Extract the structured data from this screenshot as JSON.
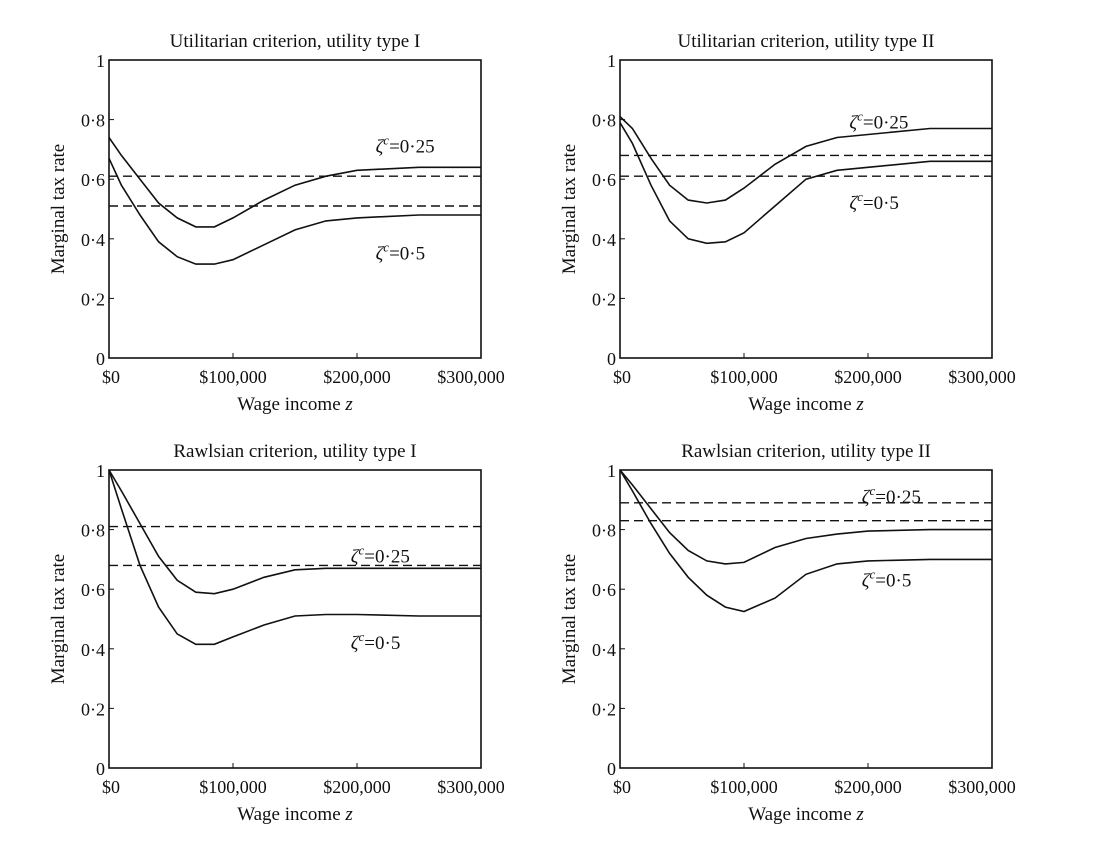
{
  "chart_data": [
    {
      "type": "line",
      "title": "Utilitarian criterion, utility type I",
      "xlabel": "Wage income z",
      "ylabel": "Marginal tax rate",
      "xlim": [
        0,
        300000
      ],
      "ylim": [
        0,
        1
      ],
      "xticks": [
        "$0",
        "$100,000",
        "$200,000",
        "$300,000"
      ],
      "yticks": [
        "0",
        "0·2",
        "0·4",
        "0·6",
        "0·8",
        "1"
      ],
      "series": [
        {
          "style": "solid",
          "x": [
            0,
            10000,
            25000,
            40000,
            55000,
            70000,
            85000,
            100000,
            125000,
            150000,
            175000,
            200000,
            250000,
            300000
          ],
          "y": [
            0.74,
            0.68,
            0.6,
            0.52,
            0.47,
            0.44,
            0.44,
            0.47,
            0.53,
            0.58,
            0.61,
            0.63,
            0.64,
            0.64
          ]
        },
        {
          "style": "solid",
          "x": [
            0,
            10000,
            25000,
            40000,
            55000,
            70000,
            85000,
            100000,
            125000,
            150000,
            175000,
            200000,
            250000,
            300000
          ],
          "y": [
            0.67,
            0.58,
            0.48,
            0.39,
            0.34,
            0.315,
            0.315,
            0.33,
            0.38,
            0.43,
            0.46,
            0.47,
            0.48,
            0.48
          ]
        },
        {
          "style": "dashed",
          "x": [
            0,
            300000
          ],
          "y": [
            0.61,
            0.61
          ]
        },
        {
          "style": "dashed",
          "x": [
            0,
            300000
          ],
          "y": [
            0.51,
            0.51
          ]
        }
      ],
      "annotations": [
        {
          "text": "ζ",
          "sup": "c",
          "value": "=0·25",
          "x": 215000,
          "y": 0.71
        },
        {
          "text": "ζ",
          "sup": "c",
          "value": "=0·5",
          "x": 215000,
          "y": 0.35
        }
      ]
    },
    {
      "type": "line",
      "title": "Utilitarian criterion, utility type II",
      "xlabel": "Wage income z",
      "ylabel": "Marginal tax rate",
      "xlim": [
        0,
        300000
      ],
      "ylim": [
        0,
        1
      ],
      "xticks": [
        "$0",
        "$100,000",
        "$200,000",
        "$300,000"
      ],
      "yticks": [
        "0",
        "0·2",
        "0·4",
        "0·6",
        "0·8",
        "1"
      ],
      "series": [
        {
          "style": "solid",
          "x": [
            0,
            10000,
            25000,
            40000,
            55000,
            70000,
            85000,
            100000,
            125000,
            150000,
            175000,
            200000,
            250000,
            300000
          ],
          "y": [
            0.81,
            0.77,
            0.67,
            0.58,
            0.53,
            0.52,
            0.53,
            0.57,
            0.65,
            0.71,
            0.74,
            0.75,
            0.77,
            0.77
          ]
        },
        {
          "style": "solid",
          "x": [
            0,
            10000,
            25000,
            40000,
            55000,
            70000,
            85000,
            100000,
            125000,
            150000,
            175000,
            200000,
            250000,
            300000
          ],
          "y": [
            0.79,
            0.72,
            0.58,
            0.46,
            0.4,
            0.385,
            0.39,
            0.42,
            0.51,
            0.6,
            0.63,
            0.64,
            0.66,
            0.66
          ]
        },
        {
          "style": "dashed",
          "x": [
            0,
            300000
          ],
          "y": [
            0.68,
            0.68
          ]
        },
        {
          "style": "dashed",
          "x": [
            0,
            300000
          ],
          "y": [
            0.61,
            0.61
          ]
        }
      ],
      "annotations": [
        {
          "text": "ζ",
          "sup": "c",
          "value": "=0·25",
          "x": 185000,
          "y": 0.79
        },
        {
          "text": "ζ",
          "sup": "c",
          "value": "=0·5",
          "x": 185000,
          "y": 0.52
        }
      ]
    },
    {
      "type": "line",
      "title": "Rawlsian criterion, utility type I",
      "xlabel": "Wage income z",
      "ylabel": "Marginal tax rate",
      "xlim": [
        0,
        300000
      ],
      "ylim": [
        0,
        1
      ],
      "xticks": [
        "$0",
        "$100,000",
        "$200,000",
        "$300,000"
      ],
      "yticks": [
        "0",
        "0·2",
        "0·4",
        "0·6",
        "0·8",
        "1"
      ],
      "series": [
        {
          "style": "solid",
          "x": [
            0,
            10000,
            25000,
            40000,
            55000,
            70000,
            85000,
            100000,
            125000,
            150000,
            175000,
            200000,
            250000,
            300000
          ],
          "y": [
            1.0,
            0.93,
            0.82,
            0.71,
            0.63,
            0.59,
            0.585,
            0.6,
            0.64,
            0.665,
            0.67,
            0.67,
            0.67,
            0.67
          ]
        },
        {
          "style": "solid",
          "x": [
            0,
            10000,
            25000,
            40000,
            55000,
            70000,
            85000,
            100000,
            125000,
            150000,
            175000,
            200000,
            250000,
            300000
          ],
          "y": [
            1.0,
            0.87,
            0.68,
            0.54,
            0.45,
            0.415,
            0.415,
            0.44,
            0.48,
            0.51,
            0.515,
            0.515,
            0.51,
            0.51
          ]
        },
        {
          "style": "dashed",
          "x": [
            0,
            300000
          ],
          "y": [
            0.81,
            0.81
          ]
        },
        {
          "style": "dashed",
          "x": [
            0,
            300000
          ],
          "y": [
            0.68,
            0.68
          ]
        }
      ],
      "annotations": [
        {
          "text": "ζ",
          "sup": "c",
          "value": "=0·25",
          "x": 195000,
          "y": 0.71
        },
        {
          "text": "ζ",
          "sup": "c",
          "value": "=0·5",
          "x": 195000,
          "y": 0.42
        }
      ]
    },
    {
      "type": "line",
      "title": "Rawlsian criterion, utility type II",
      "xlabel": "Wage income z",
      "ylabel": "Marginal tax rate",
      "xlim": [
        0,
        300000
      ],
      "ylim": [
        0,
        1
      ],
      "xticks": [
        "$0",
        "$100,000",
        "$200,000",
        "$300,000"
      ],
      "yticks": [
        "0",
        "0·2",
        "0·4",
        "0·6",
        "0·8",
        "1"
      ],
      "series": [
        {
          "style": "solid",
          "x": [
            0,
            10000,
            25000,
            40000,
            55000,
            70000,
            85000,
            100000,
            125000,
            150000,
            175000,
            200000,
            250000,
            300000
          ],
          "y": [
            1.0,
            0.95,
            0.87,
            0.79,
            0.73,
            0.695,
            0.685,
            0.69,
            0.74,
            0.77,
            0.785,
            0.795,
            0.8,
            0.8
          ]
        },
        {
          "style": "solid",
          "x": [
            0,
            10000,
            25000,
            40000,
            55000,
            70000,
            85000,
            100000,
            125000,
            150000,
            175000,
            200000,
            250000,
            300000
          ],
          "y": [
            1.0,
            0.93,
            0.82,
            0.72,
            0.64,
            0.58,
            0.54,
            0.525,
            0.57,
            0.65,
            0.685,
            0.695,
            0.7,
            0.7
          ]
        },
        {
          "style": "dashed",
          "x": [
            0,
            300000
          ],
          "y": [
            0.89,
            0.89
          ]
        },
        {
          "style": "dashed",
          "x": [
            0,
            300000
          ],
          "y": [
            0.83,
            0.83
          ]
        }
      ],
      "annotations": [
        {
          "text": "ζ",
          "sup": "c",
          "value": "=0·25",
          "x": 195000,
          "y": 0.91
        },
        {
          "text": "ζ",
          "sup": "c",
          "value": "=0·5",
          "x": 195000,
          "y": 0.63
        }
      ]
    }
  ]
}
